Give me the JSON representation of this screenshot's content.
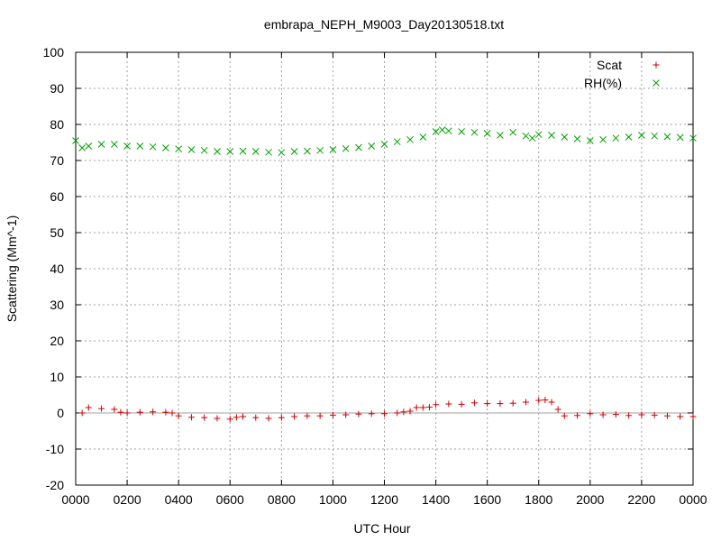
{
  "chart_data": {
    "type": "scatter",
    "title": "embrapa_NEPH_M9003_Day20130518.txt",
    "xlabel": "UTC Hour",
    "ylabel": "Scattering (Mm^-1)",
    "xlim": [
      0,
      24
    ],
    "ylim": [
      -20,
      100
    ],
    "grid": true,
    "legend_position": "top-right",
    "x_ticks": [
      {
        "value": 0,
        "label": "0000"
      },
      {
        "value": 2,
        "label": "0200"
      },
      {
        "value": 4,
        "label": "0400"
      },
      {
        "value": 6,
        "label": "0600"
      },
      {
        "value": 8,
        "label": "0800"
      },
      {
        "value": 10,
        "label": "1000"
      },
      {
        "value": 12,
        "label": "1200"
      },
      {
        "value": 14,
        "label": "1400"
      },
      {
        "value": 16,
        "label": "1600"
      },
      {
        "value": 18,
        "label": "1800"
      },
      {
        "value": 20,
        "label": "2000"
      },
      {
        "value": 22,
        "label": "2200"
      },
      {
        "value": 24,
        "label": "0000"
      }
    ],
    "y_ticks": [
      {
        "value": -20,
        "label": "-20"
      },
      {
        "value": -10,
        "label": "-10"
      },
      {
        "value": 0,
        "label": "0"
      },
      {
        "value": 10,
        "label": "10"
      },
      {
        "value": 20,
        "label": "20"
      },
      {
        "value": 30,
        "label": "30"
      },
      {
        "value": 40,
        "label": "40"
      },
      {
        "value": 50,
        "label": "50"
      },
      {
        "value": 60,
        "label": "60"
      },
      {
        "value": 70,
        "label": "70"
      },
      {
        "value": 80,
        "label": "80"
      },
      {
        "value": 90,
        "label": "90"
      },
      {
        "value": 100,
        "label": "100"
      }
    ],
    "zero_line": 0,
    "series": [
      {
        "name": "Scat",
        "marker": "plus",
        "color": "#cc0000",
        "x": [
          0.25,
          0.5,
          1.0,
          1.5,
          1.75,
          2.0,
          2.5,
          3.0,
          3.5,
          3.75,
          4.0,
          4.5,
          5.0,
          5.5,
          6.0,
          6.25,
          6.5,
          7.0,
          7.5,
          8.0,
          8.5,
          9.0,
          9.5,
          10.0,
          10.5,
          11.0,
          11.5,
          12.0,
          12.5,
          12.75,
          13.0,
          13.25,
          13.5,
          13.75,
          14.0,
          14.5,
          15.0,
          15.5,
          16.0,
          16.5,
          17.0,
          17.5,
          18.0,
          18.25,
          18.5,
          18.75,
          19.0,
          19.5,
          20.0,
          20.5,
          21.0,
          21.5,
          22.0,
          22.5,
          23.0,
          23.5,
          24.0
        ],
        "y": [
          0.0,
          1.5,
          1.2,
          1.0,
          0.2,
          0.0,
          0.2,
          0.3,
          0.2,
          0.0,
          -0.8,
          -1.2,
          -1.3,
          -1.5,
          -1.7,
          -1.2,
          -1.0,
          -1.3,
          -1.5,
          -1.3,
          -1.0,
          -0.8,
          -0.8,
          -0.6,
          -0.5,
          -0.3,
          -0.2,
          -0.2,
          0.0,
          0.3,
          0.5,
          1.5,
          1.5,
          1.6,
          2.3,
          2.5,
          2.4,
          2.8,
          2.6,
          2.6,
          2.7,
          3.0,
          3.5,
          3.6,
          3.0,
          1.0,
          -0.8,
          -0.7,
          -0.2,
          -0.5,
          -0.4,
          -0.7,
          -0.5,
          -0.6,
          -0.8,
          -1.0,
          -1.0
        ]
      },
      {
        "name": "RH(%)",
        "marker": "cross",
        "color": "#00a000",
        "x": [
          0.0,
          0.25,
          0.5,
          1.0,
          1.5,
          2.0,
          2.5,
          3.0,
          3.5,
          4.0,
          4.5,
          5.0,
          5.5,
          6.0,
          6.5,
          7.0,
          7.5,
          8.0,
          8.5,
          9.0,
          9.5,
          10.0,
          10.5,
          11.0,
          11.5,
          12.0,
          12.5,
          13.0,
          13.5,
          14.0,
          14.25,
          14.5,
          15.0,
          15.5,
          16.0,
          16.5,
          17.0,
          17.5,
          17.75,
          18.0,
          18.5,
          19.0,
          19.5,
          20.0,
          20.5,
          21.0,
          21.5,
          22.0,
          22.5,
          23.0,
          23.5,
          24.0
        ],
        "y": [
          75.5,
          73.5,
          74.0,
          74.5,
          74.5,
          74.0,
          74.0,
          73.8,
          73.5,
          73.2,
          73.0,
          72.8,
          72.5,
          72.5,
          72.6,
          72.5,
          72.3,
          72.2,
          72.5,
          72.6,
          72.8,
          73.0,
          73.3,
          73.6,
          74.0,
          74.5,
          75.2,
          75.8,
          76.5,
          78.0,
          78.5,
          78.2,
          78.0,
          77.8,
          77.5,
          77.0,
          77.8,
          76.8,
          76.2,
          77.2,
          77.0,
          76.5,
          76.0,
          75.5,
          75.8,
          76.2,
          76.5,
          77.0,
          76.8,
          76.6,
          76.4,
          76.2
        ]
      }
    ]
  }
}
